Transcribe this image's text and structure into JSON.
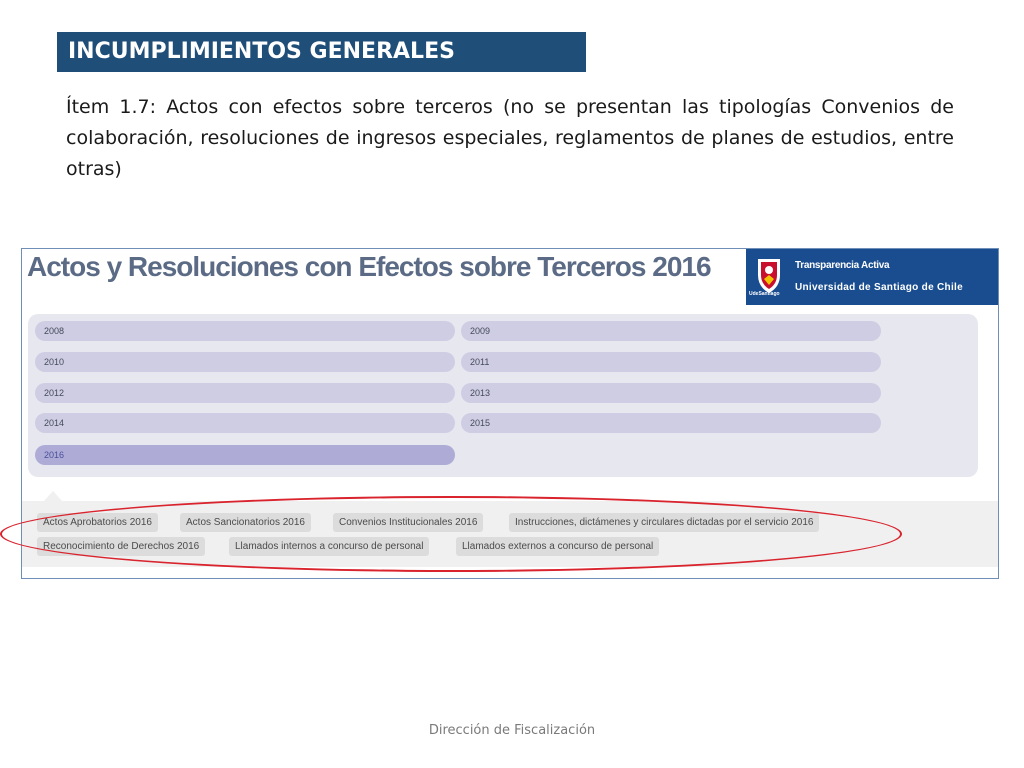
{
  "slide": {
    "title": "INCUMPLIMIENTOS GENERALES",
    "body": "Ítem 1.7: Actos con efectos sobre terceros (no se presentan las tipologías Convenios de colaboración, resoluciones de ingresos especiales, reglamentos de planes de estudios, entre otras)",
    "footer": "Dirección de Fiscalización"
  },
  "screenshot": {
    "title": "Actos y Resoluciones con Efectos sobre Terceros 2016",
    "brand": {
      "line1": "Transparencia Activa",
      "line2": "Universidad de Santiago de Chile",
      "logo_caption": "UdeSantiago",
      "logo_icon": "university-crest-icon",
      "color": "#1a4d8f"
    },
    "years": [
      {
        "label": "2008",
        "active": false
      },
      {
        "label": "2009",
        "active": false
      },
      {
        "label": "2010",
        "active": false
      },
      {
        "label": "2011",
        "active": false
      },
      {
        "label": "2012",
        "active": false
      },
      {
        "label": "2013",
        "active": false
      },
      {
        "label": "2014",
        "active": false
      },
      {
        "label": "2015",
        "active": false
      },
      {
        "label": "2016",
        "active": true
      }
    ],
    "tabs": [
      "Actos Aprobatorios 2016",
      "Actos Sancionatorios 2016",
      "Convenios Institucionales 2016",
      "Instrucciones, dictámenes y circulares dictadas por el servicio 2016",
      "Reconocimiento de Derechos 2016",
      "Llamados internos a concurso de personal",
      "Llamados externos a concurso de personal"
    ]
  },
  "colors": {
    "title_bar": "#1f4e79",
    "highlight_ellipse": "#d9232d",
    "active_year": "#aeacd6"
  }
}
